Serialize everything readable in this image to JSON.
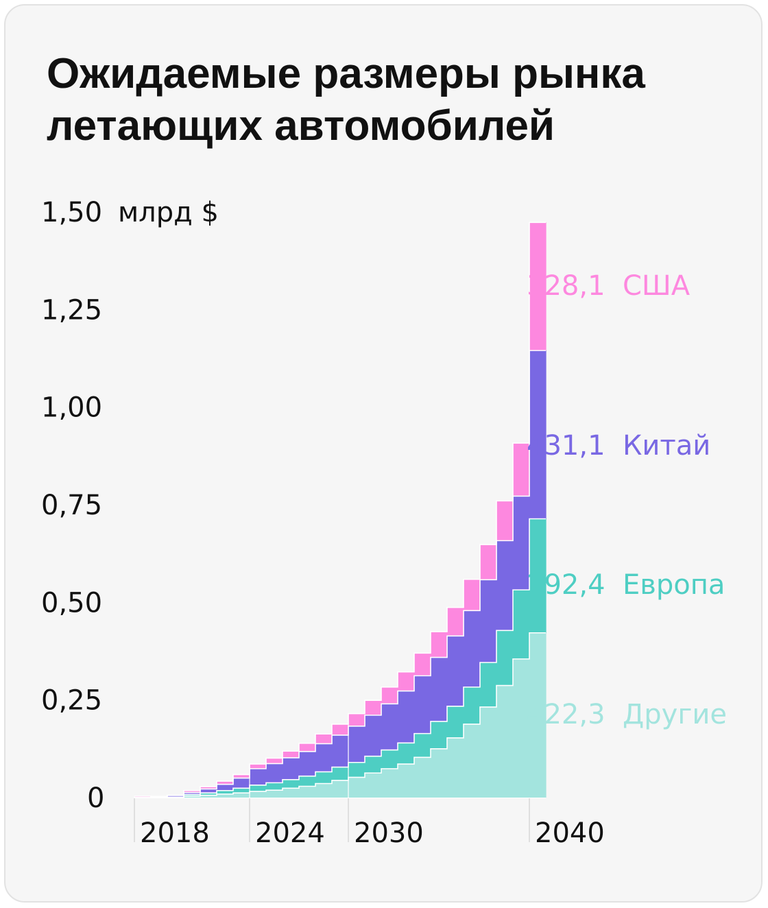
{
  "title": "Ожидаемые размеры рынка летающих автомобилей",
  "chart_data": {
    "type": "bar",
    "stacked": true,
    "style": "step",
    "x": [
      2016,
      2017,
      2018,
      2019,
      2020,
      2021,
      2022,
      2023,
      2024,
      2025,
      2026,
      2027,
      2028,
      2029,
      2030,
      2031,
      2032,
      2033,
      2034,
      2035,
      2036,
      2037,
      2038,
      2039,
      2040
    ],
    "x_tick_labels": [
      "2018",
      "2024",
      "2030",
      "2040"
    ],
    "x_tick_values": [
      2018,
      2024,
      2030,
      2040
    ],
    "y_unit": "млрд $",
    "y_tick_labels": [
      "0",
      "0,25",
      "0,50",
      "0,75",
      "1,00",
      "1,25",
      "1,50"
    ],
    "y_tick_values": [
      0,
      0.25,
      0.5,
      0.75,
      1.0,
      1.25,
      1.5
    ],
    "ylim": [
      0,
      1.5
    ],
    "series": [
      {
        "name": "Другие",
        "color": "#a3e4de",
        "end_label": "422,3",
        "values": [
          0.0,
          0.0002,
          0.0005,
          0.004,
          0.006,
          0.009,
          0.012,
          0.016,
          0.019,
          0.024,
          0.029,
          0.036,
          0.044,
          0.052,
          0.063,
          0.074,
          0.086,
          0.103,
          0.125,
          0.153,
          0.188,
          0.232,
          0.287,
          0.355,
          0.422
        ]
      },
      {
        "name": "Европа",
        "color": "#4ecec3",
        "end_label": "292,4",
        "values": [
          0.0,
          0.0003,
          0.0008,
          0.004,
          0.006,
          0.009,
          0.012,
          0.016,
          0.019,
          0.022,
          0.026,
          0.03,
          0.034,
          0.038,
          0.043,
          0.048,
          0.054,
          0.061,
          0.07,
          0.081,
          0.095,
          0.114,
          0.141,
          0.177,
          0.292
        ]
      },
      {
        "name": "Китай",
        "color": "#7968e3",
        "end_label": "431,1",
        "values": [
          0.0,
          0.002,
          0.004,
          0.005,
          0.01,
          0.016,
          0.026,
          0.042,
          0.049,
          0.056,
          0.063,
          0.072,
          0.082,
          0.093,
          0.105,
          0.118,
          0.133,
          0.148,
          0.164,
          0.18,
          0.196,
          0.212,
          0.23,
          0.24,
          0.431
        ]
      },
      {
        "name": "США",
        "color": "#fd88df",
        "end_label": "328,1",
        "values": [
          0.0035,
          0.0005,
          0.0007,
          0.005,
          0.006,
          0.008,
          0.009,
          0.012,
          0.014,
          0.017,
          0.021,
          0.025,
          0.028,
          0.032,
          0.038,
          0.043,
          0.049,
          0.058,
          0.066,
          0.073,
          0.08,
          0.09,
          0.102,
          0.136,
          0.328
        ]
      }
    ]
  }
}
